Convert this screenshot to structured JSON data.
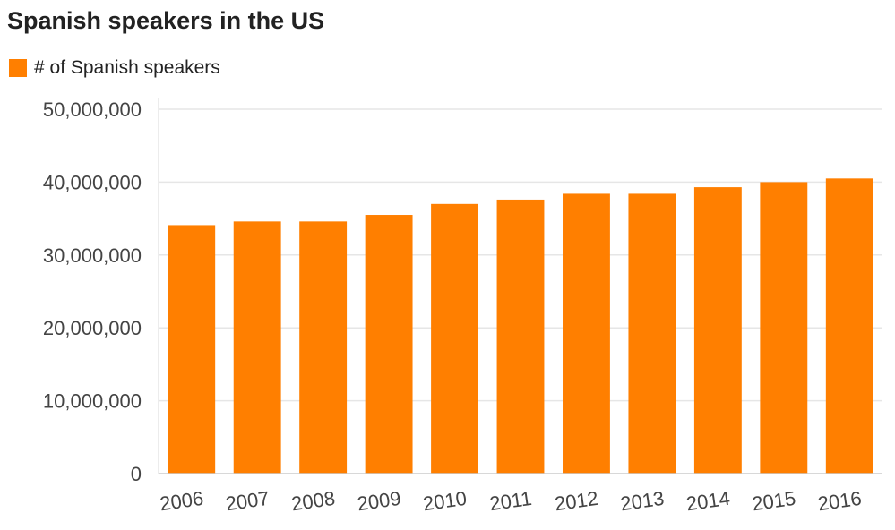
{
  "colors": {
    "bar": "#ff7f00",
    "grid": "#e6e6e6",
    "axis": "#cccccc",
    "text": "#444444"
  },
  "chart_data": {
    "type": "bar",
    "title": "Spanish speakers in the US",
    "xlabel": "",
    "ylabel": "",
    "categories": [
      "2006",
      "2007",
      "2008",
      "2009",
      "2010",
      "2011",
      "2012",
      "2013",
      "2014",
      "2015",
      "2016"
    ],
    "series": [
      {
        "name": "# of Spanish speakers",
        "values": [
          34100000,
          34600000,
          34600000,
          35500000,
          37000000,
          37600000,
          38400000,
          38400000,
          39300000,
          40000000,
          40500000
        ]
      }
    ],
    "ylim": [
      0,
      50000000
    ],
    "yticks": [
      0,
      10000000,
      20000000,
      30000000,
      40000000,
      50000000
    ],
    "ytick_labels": [
      "0",
      "10,000,000",
      "20,000,000",
      "30,000,000",
      "40,000,000",
      "50,000,000"
    ],
    "grid": true,
    "legend_position": "top-left"
  }
}
